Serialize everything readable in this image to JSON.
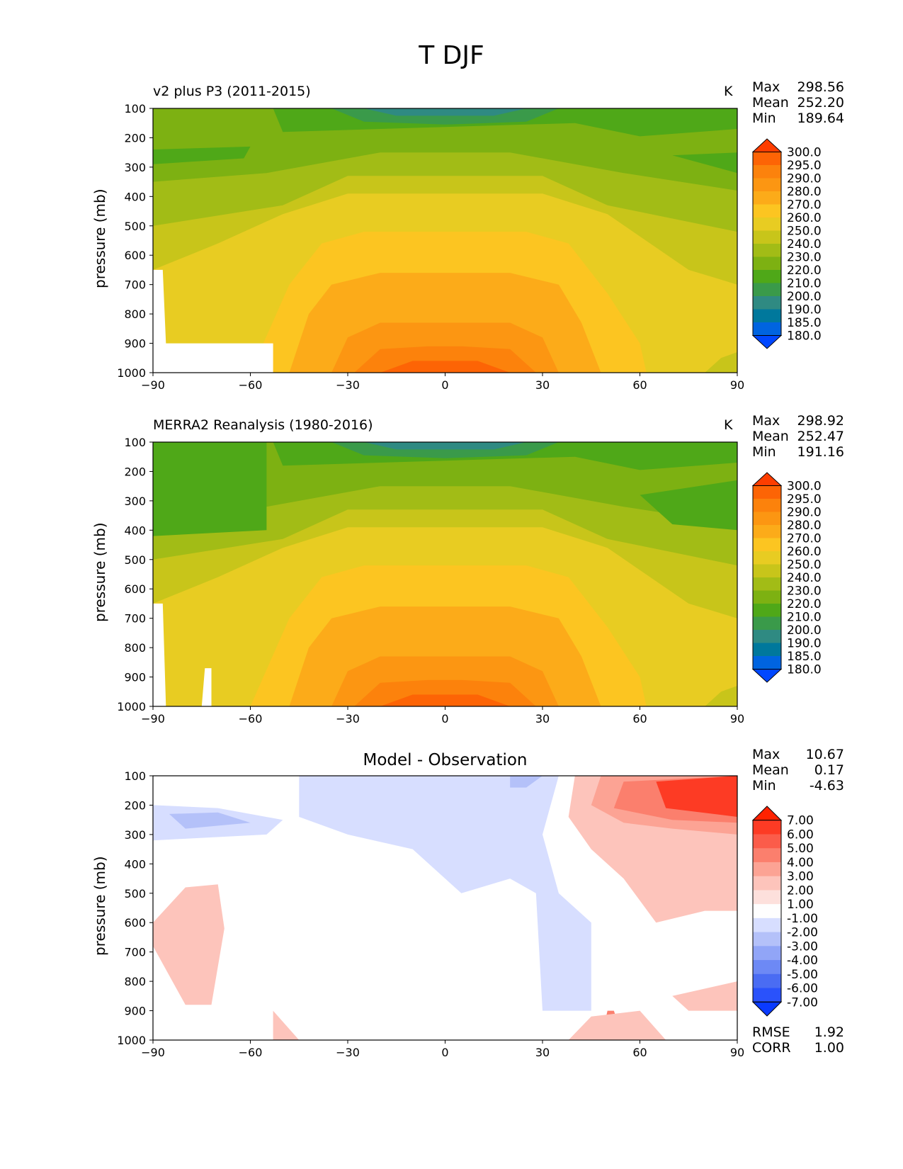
{
  "figure_title": "T DJF",
  "chart_data": [
    {
      "type": "heatmap",
      "title": "v2 plus P3 (2011-2015)",
      "units": "K",
      "ylabel": "pressure (mb)",
      "x_ticks": [
        "−90",
        "−60",
        "−30",
        "0",
        "30",
        "60",
        "90"
      ],
      "y_ticks": [
        "100",
        "200",
        "300",
        "400",
        "500",
        "600",
        "700",
        "800",
        "900",
        "1000"
      ],
      "xlim": [
        -90,
        90
      ],
      "ylim": [
        1000,
        100
      ],
      "stats": {
        "max_label": "Max",
        "max": "298.56",
        "mean_label": "Mean",
        "mean": "252.20",
        "min_label": "Min",
        "min": "189.64"
      },
      "levels": [
        "300.0",
        "295.0",
        "290.0",
        "280.0",
        "270.0",
        "260.0",
        "250.0",
        "240.0",
        "230.0",
        "220.0",
        "210.0",
        "200.0",
        "190.0",
        "185.0",
        "180.0"
      ]
    },
    {
      "type": "heatmap",
      "title": "MERRA2 Reanalysis (1980-2016)",
      "units": "K",
      "ylabel": "pressure (mb)",
      "x_ticks": [
        "−90",
        "−60",
        "−30",
        "0",
        "30",
        "60",
        "90"
      ],
      "y_ticks": [
        "100",
        "200",
        "300",
        "400",
        "500",
        "600",
        "700",
        "800",
        "900",
        "1000"
      ],
      "xlim": [
        -90,
        90
      ],
      "ylim": [
        1000,
        100
      ],
      "stats": {
        "max_label": "Max",
        "max": "298.92",
        "mean_label": "Mean",
        "mean": "252.47",
        "min_label": "Min",
        "min": "191.16"
      },
      "levels": [
        "300.0",
        "295.0",
        "290.0",
        "280.0",
        "270.0",
        "260.0",
        "250.0",
        "240.0",
        "230.0",
        "220.0",
        "210.0",
        "200.0",
        "190.0",
        "185.0",
        "180.0"
      ]
    },
    {
      "type": "heatmap",
      "title": "Model - Observation",
      "units": "",
      "ylabel": "pressure (mb)",
      "x_ticks": [
        "−90",
        "−60",
        "−30",
        "0",
        "30",
        "60",
        "90"
      ],
      "y_ticks": [
        "100",
        "200",
        "300",
        "400",
        "500",
        "600",
        "700",
        "800",
        "900",
        "1000"
      ],
      "xlim": [
        -90,
        90
      ],
      "ylim": [
        1000,
        100
      ],
      "stats": {
        "max_label": "Max",
        "max": "10.67",
        "mean_label": "Mean",
        "mean": "0.17",
        "min_label": "Min",
        "min": "-4.63"
      },
      "extra_stats": {
        "rmse_label": "RMSE",
        "rmse": "1.92",
        "corr_label": "CORR",
        "corr": "1.00"
      },
      "levels": [
        "7.00",
        "6.00",
        "5.00",
        "4.00",
        "3.00",
        "2.00",
        "1.00",
        "-1.00",
        "-2.00",
        "-3.00",
        "-4.00",
        "-5.00",
        "-6.00",
        "-7.00"
      ]
    }
  ],
  "colors": {
    "abs_scale": [
      "#0047ff",
      "#0064e0",
      "#00789c",
      "#2f8a82",
      "#3a9a4a",
      "#4fa818",
      "#7db112",
      "#a2bc16",
      "#c8c51a",
      "#e8cc22",
      "#fcc521",
      "#fcab19",
      "#fc9612",
      "#fc820c",
      "#fd6405",
      "#fe3d00",
      "#ff2200"
    ],
    "diff_scale": [
      "#0a3aff",
      "#2a52fb",
      "#4a6cf3",
      "#6d89f5",
      "#91a5f7",
      "#b4c1f9",
      "#d7deff",
      "#fefefe",
      "#fde0dc",
      "#fdc4bb",
      "#fca394",
      "#fb7f6d",
      "#fb5c4a",
      "#fd3b24",
      "#ff2200"
    ]
  }
}
